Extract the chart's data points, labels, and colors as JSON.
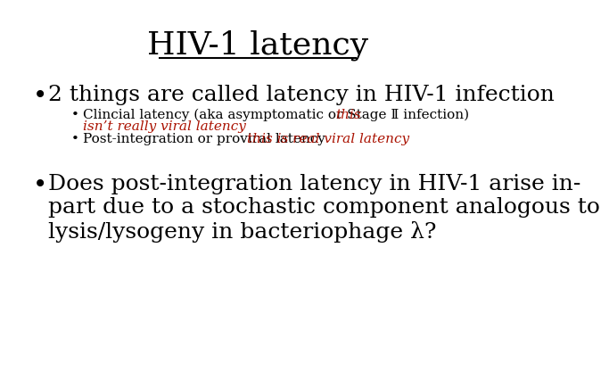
{
  "title": "HIV-1 latency",
  "title_fontsize": 26,
  "background_color": "#ffffff",
  "bullet1": "2 things are called latency in HIV-1 infection",
  "bullet1_fontsize": 18,
  "sub_bullet1_black": "Clincial latency (aka asymptomatic or Stage Ⅱ infection) ",
  "sub_bullet1_red_1": "this",
  "sub_bullet1_red_2": "isn’t really viral latency",
  "sub_bullet2_black": "Post-integration or proviral latency ",
  "sub_bullet2_red": "this is real viral latency",
  "sub_fontsize": 11,
  "bullet2_line1": "Does post-integration latency in HIV-1 arise in-",
  "bullet2_line2": "part due to a stochastic component analogous to",
  "bullet2_line3": "lysis/lysogeny in bacteriophage λ?",
  "bullet2_fontsize": 18,
  "black_color": "#000000",
  "red_color": "#aa1100"
}
